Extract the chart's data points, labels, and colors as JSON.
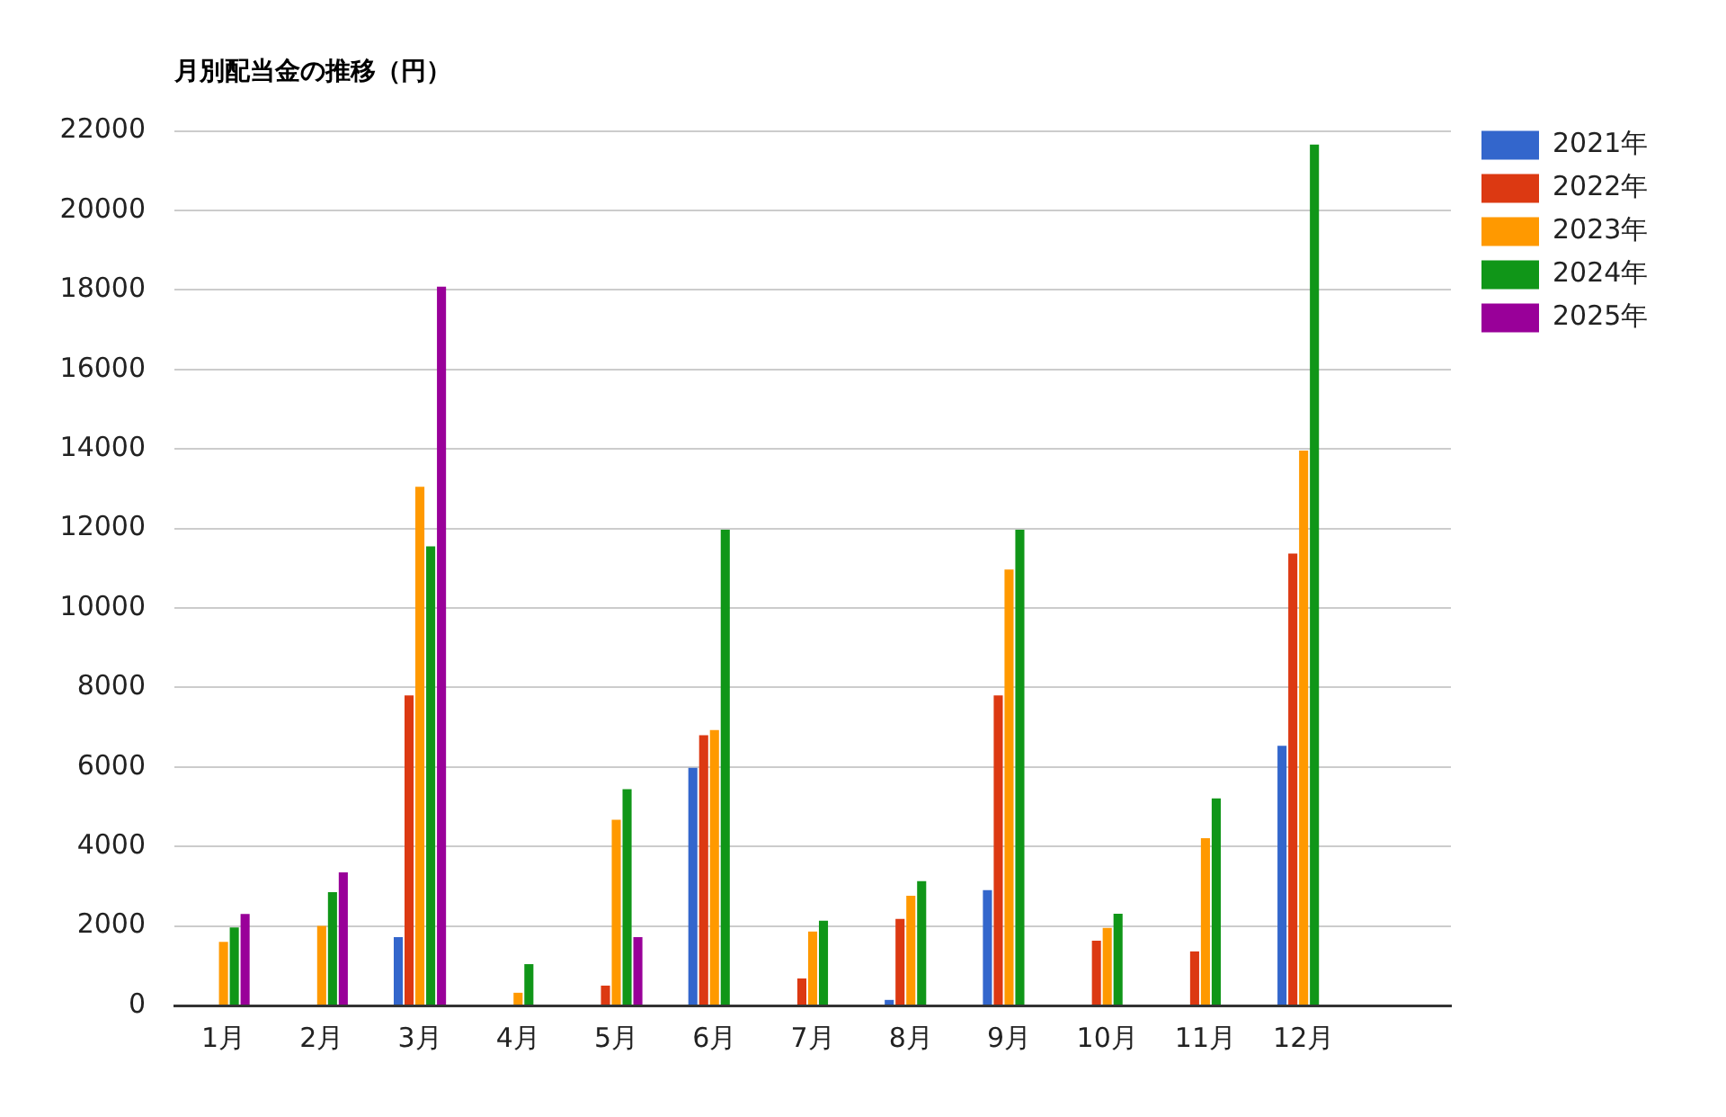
{
  "chart_data": {
    "type": "bar",
    "title": "月別配当金の推移（円）",
    "categories": [
      "1月",
      "2月",
      "3月",
      "4月",
      "5月",
      "6月",
      "7月",
      "8月",
      "9月",
      "10月",
      "11月",
      "12月",
      null
    ],
    "series": [
      {
        "name": "2021年",
        "color": "#3366cc",
        "values": [
          null,
          null,
          1720,
          null,
          null,
          5980,
          null,
          140,
          2900,
          null,
          null,
          6530,
          null
        ]
      },
      {
        "name": "2022年",
        "color": "#dc3912",
        "values": [
          null,
          null,
          7800,
          null,
          500,
          6800,
          680,
          2180,
          7800,
          1630,
          1360,
          11370,
          null
        ]
      },
      {
        "name": "2023年",
        "color": "#ff9900",
        "values": [
          1600,
          2000,
          13050,
          320,
          4670,
          6930,
          1860,
          2760,
          10970,
          1950,
          4210,
          13960,
          null
        ]
      },
      {
        "name": "2024年",
        "color": "#109618",
        "values": [
          1960,
          2850,
          11550,
          1040,
          5440,
          11970,
          2130,
          3130,
          11970,
          2310,
          5210,
          21660,
          null
        ]
      },
      {
        "name": "2025年",
        "color": "#990099",
        "values": [
          2300,
          3350,
          18080,
          null,
          1720,
          null,
          null,
          null,
          null,
          null,
          null,
          null,
          null
        ]
      }
    ],
    "ylim": [
      0,
      22000
    ],
    "yticks": [
      0,
      2000,
      4000,
      6000,
      8000,
      10000,
      12000,
      14000,
      16000,
      18000,
      20000,
      22000
    ],
    "grid": "y",
    "legend": "top right"
  }
}
